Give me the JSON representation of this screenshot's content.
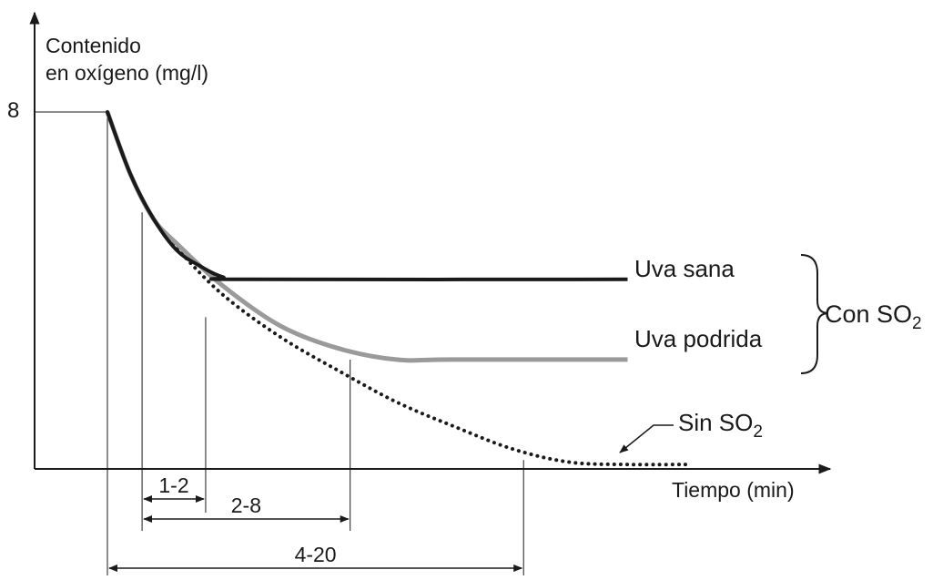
{
  "chart_data": {
    "type": "line",
    "ylabel_lines": [
      "Contenido",
      "en oxígeno (mg/l)"
    ],
    "xlabel": "Tiempo (min)",
    "y_ticks": [
      {
        "value": 8,
        "label": "8"
      }
    ],
    "series": [
      {
        "name": "Uva sana",
        "style": "solid",
        "color": "#1a1a1a",
        "points": [
          [
            0,
            8
          ],
          [
            0.2,
            6.6
          ],
          [
            0.4,
            5.6
          ],
          [
            0.6,
            4.9
          ],
          [
            0.8,
            4.55
          ],
          [
            1.0,
            4.3
          ],
          [
            1.2,
            4.25
          ],
          [
            4.5,
            4.25
          ]
        ]
      },
      {
        "name": "Uva podrida",
        "style": "solid",
        "color": "#9a9a9a",
        "points": [
          [
            0,
            8
          ],
          [
            0.2,
            6.6
          ],
          [
            0.4,
            5.6
          ],
          [
            0.6,
            5.05
          ],
          [
            1.0,
            4.1
          ],
          [
            1.5,
            3.2
          ],
          [
            2.0,
            2.7
          ],
          [
            2.5,
            2.45
          ],
          [
            3.0,
            2.45
          ],
          [
            4.5,
            2.45
          ]
        ]
      },
      {
        "name": "Sin SO₂",
        "style": "dotted",
        "color": "#1a1a1a",
        "points": [
          [
            0,
            8
          ],
          [
            0.2,
            6.6
          ],
          [
            0.4,
            5.6
          ],
          [
            0.6,
            4.95
          ],
          [
            1.0,
            3.9
          ],
          [
            1.5,
            2.95
          ],
          [
            2.0,
            2.2
          ],
          [
            2.5,
            1.5
          ],
          [
            3.0,
            0.95
          ],
          [
            3.5,
            0.45
          ],
          [
            4.0,
            0.15
          ],
          [
            4.5,
            0.1
          ],
          [
            5.0,
            0.1
          ]
        ]
      }
    ],
    "bracket_label": {
      "prefix": "Con SO",
      "sub": "2"
    },
    "sin_label": {
      "prefix": "Sin SO",
      "sub": "2"
    },
    "ranges": [
      {
        "label": "1-2",
        "from": 0.3,
        "to": 0.85
      },
      {
        "label": "2-8",
        "from": 0.3,
        "to": 2.1
      },
      {
        "label": "4-20",
        "from": 0,
        "to": 3.6
      }
    ],
    "xlim": [
      -0.6,
      5.6
    ],
    "ylim": [
      0,
      8
    ]
  }
}
